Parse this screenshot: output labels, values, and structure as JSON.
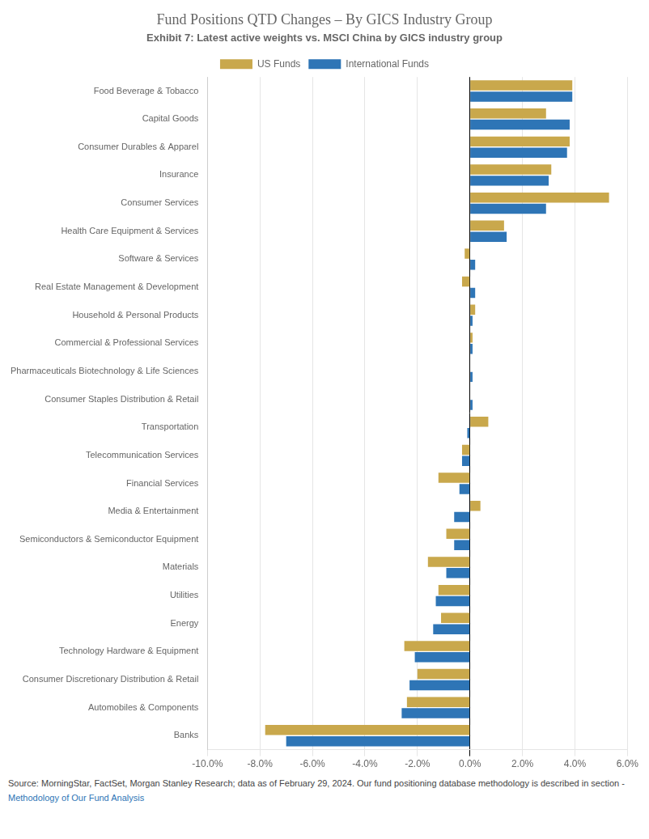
{
  "chart_data": {
    "type": "bar",
    "orientation": "horizontal",
    "title": "Fund Positions QTD Changes – By GICS Industry Group",
    "subtitle": "Exhibit 7: Latest active weights vs. MSCI China by GICS industry group",
    "categories": [
      "Banks",
      "Automobiles & Components",
      "Consumer Discretionary Distribution & Retail",
      "Technology Hardware & Equipment",
      "Energy",
      "Utilities",
      "Materials",
      "Semiconductors & Semiconductor Equipment",
      "Media & Entertainment",
      "Financial Services",
      "Telecommunication Services",
      "Transportation",
      "Consumer Staples Distribution & Retail",
      "Pharmaceuticals Biotechnology & Life Sciences",
      "Commercial & Professional Services",
      "Household & Personal Products",
      "Real Estate Management & Development",
      "Software & Services",
      "Health Care Equipment & Services",
      "Consumer Services",
      "Insurance",
      "Consumer Durables & Apparel",
      "Capital Goods",
      "Food Beverage & Tobacco"
    ],
    "series": [
      {
        "name": "US Funds",
        "color": "#c9a84c",
        "values": [
          -7.8,
          -2.4,
          -2.0,
          -2.5,
          -1.1,
          -1.2,
          -1.6,
          -0.9,
          0.4,
          -1.2,
          -0.3,
          0.7,
          0.0,
          0.0,
          0.1,
          0.2,
          -0.3,
          -0.2,
          1.3,
          5.3,
          3.1,
          3.8,
          2.9,
          3.9
        ]
      },
      {
        "name": "International Funds",
        "color": "#2e75b6",
        "values": [
          -7.0,
          -2.6,
          -2.3,
          -2.1,
          -1.4,
          -1.3,
          -0.9,
          -0.6,
          -0.6,
          -0.4,
          -0.3,
          -0.1,
          0.1,
          0.1,
          0.1,
          0.1,
          0.2,
          0.2,
          1.4,
          2.9,
          3.0,
          3.7,
          3.8,
          3.9
        ]
      }
    ],
    "xlim": [
      -10.0,
      6.0
    ],
    "xticks": [
      {
        "value": -10.0,
        "label": "-10.0%"
      },
      {
        "value": -8.0,
        "label": "-8.0%"
      },
      {
        "value": -6.0,
        "label": "-6.0%"
      },
      {
        "value": -4.0,
        "label": "-4.0%"
      },
      {
        "value": -2.0,
        "label": "-2.0%"
      },
      {
        "value": 0.0,
        "label": "0.0%"
      },
      {
        "value": 2.0,
        "label": "2.0%"
      },
      {
        "value": 4.0,
        "label": "4.0%"
      },
      {
        "value": 6.0,
        "label": "6.0%"
      }
    ],
    "grid": true,
    "legend": "top",
    "annotations": [
      "Source: MorningStar, FactSet, Morgan Stanley Research; data as of February 29, 2024. Our fund positioning database methodology is described in section - ",
      "Methodology of Our Fund Analysis"
    ]
  }
}
